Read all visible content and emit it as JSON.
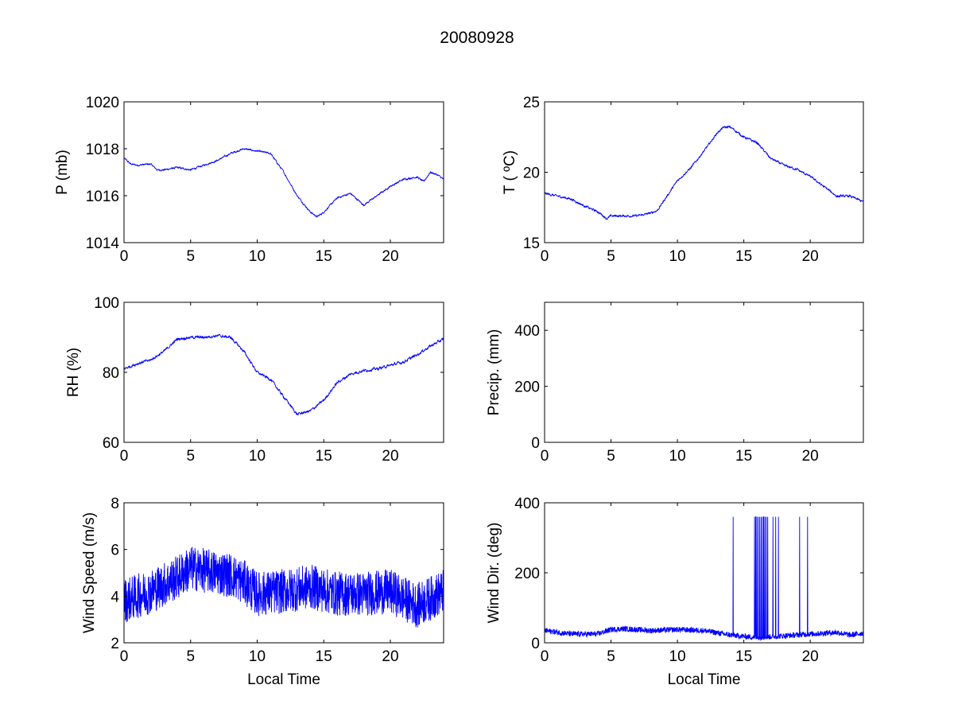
{
  "figure_title": "20080928",
  "chart_data": [
    {
      "type": "line",
      "id": "pressure",
      "ylabel": "P (mb)",
      "xlabel": "",
      "xlim": [
        0,
        24
      ],
      "ylim": [
        1014,
        1020
      ],
      "xticks": [
        0,
        5,
        10,
        15,
        20
      ],
      "yticks": [
        1014,
        1016,
        1018,
        1020
      ],
      "color": "#0000ff",
      "noise": 0.05,
      "x": [
        0,
        0.5,
        1,
        2,
        2.5,
        3,
        4,
        5,
        6,
        7,
        8,
        9,
        10,
        11,
        11.5,
        12,
        13,
        14,
        14.5,
        15,
        16,
        17,
        18,
        19,
        20,
        21,
        22,
        22.5,
        23,
        23.5,
        24
      ],
      "y": [
        1017.6,
        1017.35,
        1017.3,
        1017.35,
        1017.1,
        1017.1,
        1017.2,
        1017.1,
        1017.3,
        1017.5,
        1017.8,
        1018.0,
        1017.9,
        1017.8,
        1017.4,
        1017.0,
        1016.0,
        1015.3,
        1015.1,
        1015.3,
        1015.9,
        1016.1,
        1015.6,
        1016.0,
        1016.4,
        1016.7,
        1016.8,
        1016.6,
        1017.0,
        1016.9,
        1016.7
      ]
    },
    {
      "type": "line",
      "id": "temperature",
      "ylabel": "T ( ºC)",
      "xlabel": "",
      "xlim": [
        0,
        24
      ],
      "ylim": [
        15,
        25
      ],
      "xticks": [
        0,
        5,
        10,
        15,
        20
      ],
      "yticks": [
        15,
        20,
        25
      ],
      "color": "#0000ff",
      "noise": 0.1,
      "x": [
        0,
        1,
        2,
        3,
        4,
        4.7,
        5,
        6,
        7,
        8,
        8.5,
        9,
        10,
        11,
        12,
        13,
        13.5,
        14,
        15,
        16,
        17,
        18,
        19,
        20,
        21,
        22,
        23,
        24
      ],
      "y": [
        18.5,
        18.3,
        18.1,
        17.6,
        17.2,
        16.7,
        16.9,
        16.9,
        16.9,
        17.1,
        17.3,
        18.0,
        19.4,
        20.3,
        21.5,
        22.8,
        23.2,
        23.2,
        22.5,
        22.1,
        21.0,
        20.5,
        20.2,
        19.7,
        19.0,
        18.3,
        18.3,
        17.9
      ]
    },
    {
      "type": "line",
      "id": "humidity",
      "ylabel": "RH (%)",
      "xlabel": "",
      "xlim": [
        0,
        24
      ],
      "ylim": [
        60,
        100
      ],
      "xticks": [
        0,
        5,
        10,
        15,
        20
      ],
      "yticks": [
        60,
        80,
        100
      ],
      "color": "#0000ff",
      "noise": 0.5,
      "x": [
        0,
        1,
        2,
        3,
        4,
        5,
        6,
        7,
        8,
        9,
        10,
        11,
        12,
        13,
        14,
        15,
        16,
        17,
        18,
        19,
        20,
        21,
        22,
        23,
        24
      ],
      "y": [
        81,
        82.5,
        83.5,
        86,
        89.5,
        90,
        90,
        90.5,
        90,
        86,
        80,
        78,
        73,
        68,
        69,
        72,
        77,
        79.5,
        80.5,
        81,
        82,
        83,
        85,
        87.5,
        89.5
      ]
    },
    {
      "type": "line",
      "id": "precipitation",
      "ylabel": "Precip. (mm)",
      "xlabel": "",
      "xlim": [
        0,
        24
      ],
      "ylim": [
        0,
        500
      ],
      "xticks": [
        0,
        5,
        10,
        15,
        20
      ],
      "yticks": [
        0,
        200,
        400
      ],
      "color": "#0000ff",
      "noise": 0,
      "x": [],
      "y": []
    },
    {
      "type": "line",
      "id": "wind_speed",
      "ylabel": "Wind Speed (m/s)",
      "xlabel": "Local Time",
      "xlim": [
        0,
        24
      ],
      "ylim": [
        2,
        8
      ],
      "xticks": [
        0,
        5,
        10,
        15,
        20
      ],
      "yticks": [
        2,
        4,
        6,
        8
      ],
      "color": "#0000ff",
      "noise": 0.8,
      "x": [
        0,
        2,
        4,
        5,
        6,
        7,
        8,
        9,
        10,
        12,
        14,
        16,
        18,
        20,
        22,
        24
      ],
      "y": [
        3.8,
        4.2,
        4.8,
        5.2,
        5.1,
        5.0,
        4.9,
        4.6,
        4.1,
        4.2,
        4.4,
        4.1,
        4.1,
        4.2,
        3.6,
        4.2
      ]
    },
    {
      "type": "line",
      "id": "wind_direction",
      "ylabel": "Wind Dir. (deg)",
      "xlabel": "Local Time",
      "xlim": [
        0,
        24
      ],
      "ylim": [
        0,
        400
      ],
      "xticks": [
        0,
        5,
        10,
        15,
        20
      ],
      "yticks": [
        0,
        200,
        400
      ],
      "color": "#0000ff",
      "noise": 8,
      "x": [
        0,
        2,
        4,
        5,
        6,
        8,
        10,
        12,
        14,
        16,
        18,
        20,
        22,
        23,
        24
      ],
      "y": [
        35,
        25,
        25,
        38,
        40,
        35,
        38,
        35,
        22,
        15,
        20,
        25,
        30,
        22,
        28
      ],
      "spikes_hours": [
        14.2,
        15.8,
        15.9,
        16.0,
        16.1,
        16.2,
        16.3,
        16.4,
        16.5,
        16.6,
        16.7,
        16.8,
        17.2,
        17.4,
        17.6,
        19.2,
        19.8
      ],
      "spike_value": 360
    }
  ]
}
